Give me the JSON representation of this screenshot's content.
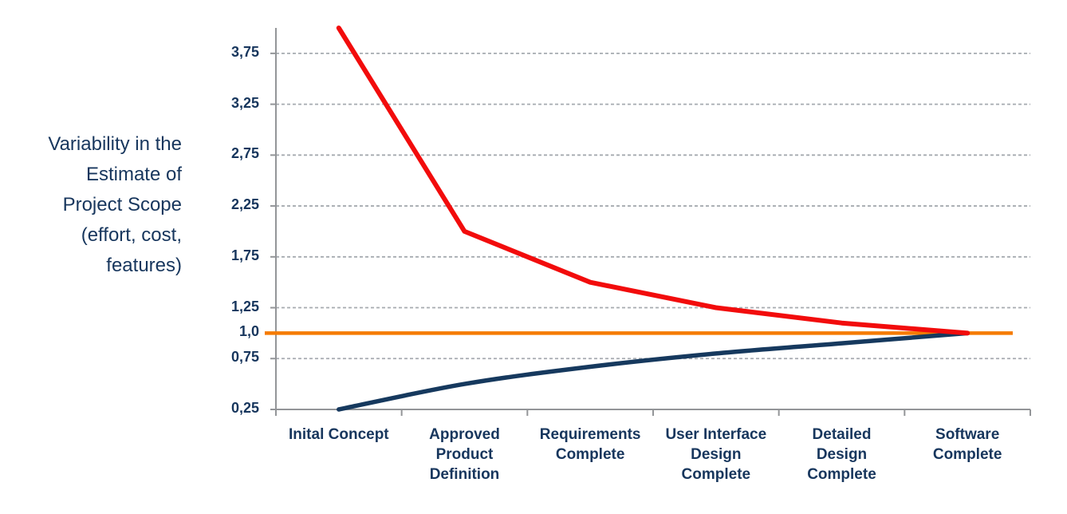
{
  "chart_data": {
    "type": "line",
    "axis_title": "Variability in the Estimate of Project Scope (effort, cost, features)",
    "axis_title_lines": [
      "Variability in the",
      "Estimate of",
      "Project Scope",
      "(effort, cost,",
      "features)"
    ],
    "categories": [
      "Inital Concept",
      "Approved Product Definition",
      "Requirements Complete",
      "User Interface Design Complete",
      "Detailed Design Complete",
      "Software Complete"
    ],
    "category_label_lines": [
      [
        "Inital Concept"
      ],
      [
        "Approved",
        "Product",
        "Definition"
      ],
      [
        "Requirements",
        "Complete"
      ],
      [
        "User Interface",
        "Design",
        "Complete"
      ],
      [
        "Detailed",
        "Design",
        "Complete"
      ],
      [
        "Software",
        "Complete"
      ]
    ],
    "series": [
      {
        "name": "upper-estimate-multiplier",
        "color": "#F20C0C",
        "stroke_width": 6,
        "style": "straight",
        "values": [
          4.0,
          2.0,
          1.5,
          1.25,
          1.1,
          1.0
        ]
      },
      {
        "name": "lower-estimate-multiplier",
        "color": "#16395E",
        "stroke_width": 5.5,
        "style": "smooth",
        "values": [
          0.25,
          0.5,
          0.67,
          0.8,
          0.9,
          1.0
        ]
      }
    ],
    "baseline": {
      "name": "exact-estimate-1x",
      "value": 1.0,
      "color": "#F57B00",
      "stroke_width": 4.5
    },
    "y_ticks": [
      {
        "label": "3,75",
        "value": 3.75
      },
      {
        "label": "3,25",
        "value": 3.25
      },
      {
        "label": "2,75",
        "value": 2.75
      },
      {
        "label": "2,25",
        "value": 2.25
      },
      {
        "label": "1,75",
        "value": 1.75
      },
      {
        "label": "1,25",
        "value": 1.25
      },
      {
        "label": "1,0",
        "value": 1.0
      },
      {
        "label": "0,75",
        "value": 0.75
      },
      {
        "label": "0,25",
        "value": 0.25
      }
    ],
    "y_gridline_values": [
      3.75,
      3.25,
      2.75,
      2.25,
      1.75,
      1.25,
      0.75
    ],
    "ylim": [
      0.25,
      4.0
    ],
    "grid": {
      "horizontal": "dashed",
      "vertical": "none"
    },
    "legend": "none",
    "colors": {
      "label_text": "#17365D",
      "gridline": "#A6ABB0",
      "axis": "#939598",
      "background": "#FFFFFF"
    }
  }
}
